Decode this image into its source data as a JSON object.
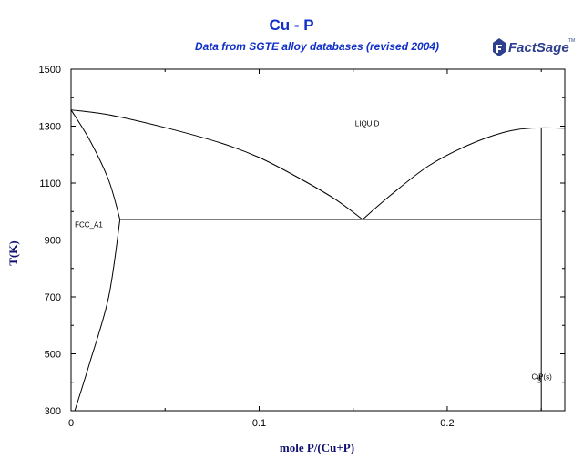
{
  "header": {
    "title": "Cu - P",
    "subtitle": "Data from SGTE alloy databases (revised 2004)",
    "logo_text": "FactSage",
    "logo_tm": "TM"
  },
  "chart_data": {
    "type": "line",
    "title": "Cu - P",
    "subtitle": "Data from SGTE alloy databases (revised 2004)",
    "xlabel": "mole P/(Cu+P)",
    "ylabel": "T(K)",
    "xlim": [
      0,
      0.2625
    ],
    "ylim": [
      300,
      1500
    ],
    "x_ticks": [
      0,
      0.1,
      0.2
    ],
    "x_tick_labels": [
      "0",
      "0.1",
      "0.2"
    ],
    "y_ticks": [
      300,
      500,
      700,
      900,
      1100,
      1300,
      1500
    ],
    "y_tick_labels": [
      "300",
      "500",
      "700",
      "900",
      "1100",
      "1300",
      "1500"
    ],
    "grid": false,
    "series": [
      {
        "values": [
          [
            0,
            1357
          ],
          [
            0.02,
            1340
          ],
          [
            0.05,
            1295
          ],
          [
            0.08,
            1240
          ],
          [
            0.1,
            1190
          ],
          [
            0.12,
            1122
          ],
          [
            0.14,
            1045
          ],
          [
            0.155,
            972
          ]
        ]
      },
      {
        "values": [
          [
            0.155,
            972
          ],
          [
            0.17,
            1058
          ],
          [
            0.19,
            1160
          ],
          [
            0.21,
            1230
          ],
          [
            0.23,
            1278
          ],
          [
            0.245,
            1293
          ],
          [
            0.2625,
            1293
          ]
        ]
      },
      {
        "values": [
          [
            0,
            1357
          ],
          [
            0.01,
            1250
          ],
          [
            0.02,
            1110
          ],
          [
            0.026,
            972
          ]
        ]
      },
      {
        "values": [
          [
            0.026,
            972
          ],
          [
            0.02,
            700
          ],
          [
            0.01,
            470
          ],
          [
            0.002,
            300
          ]
        ]
      },
      {
        "values": [
          [
            0.026,
            972
          ],
          [
            0.25,
            972
          ]
        ]
      },
      {
        "values": [
          [
            0.25,
            300
          ],
          [
            0.25,
            1293
          ]
        ]
      }
    ],
    "annotations": [
      {
        "text": "LIQUID",
        "x": 0.151,
        "y": 1300
      },
      {
        "text": "FCC_A1",
        "x": 0.002,
        "y": 945
      },
      {
        "text": "Cu",
        "x": 0.2448,
        "y": 410
      },
      {
        "text": "3",
        "x": 0.2478,
        "y": 398
      },
      {
        "text": "P(s)",
        "x": 0.2485,
        "y": 410
      }
    ]
  }
}
